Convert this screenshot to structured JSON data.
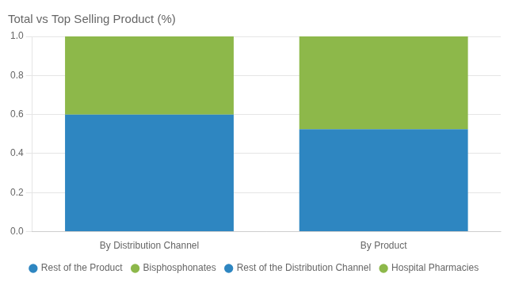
{
  "chart_data": {
    "type": "bar",
    "title": "Total vs Top Selling Product (%)",
    "categories": [
      "By Distribution Channel",
      "By Product"
    ],
    "stacked": true,
    "series": [
      {
        "name": "Rest of the Product",
        "color": "#2E86C1",
        "values": [
          null,
          0.525
        ]
      },
      {
        "name": "Bisphosphonates",
        "color": "#8db84a",
        "values": [
          null,
          0.475
        ]
      },
      {
        "name": "Rest of the Distribution Channel",
        "color": "#2E86C1",
        "values": [
          0.6,
          null
        ]
      },
      {
        "name": "Hospital Pharmacies",
        "color": "#8db84a",
        "values": [
          0.4,
          null
        ]
      }
    ],
    "ylim": [
      0.0,
      1.0
    ],
    "yticks": [
      {
        "value": 0.0,
        "label": "0.0"
      },
      0.2,
      0.4,
      0.6,
      0.8,
      {
        "value": 1.0,
        "label": "1.0"
      }
    ],
    "grid": true,
    "legend": "bottom"
  }
}
